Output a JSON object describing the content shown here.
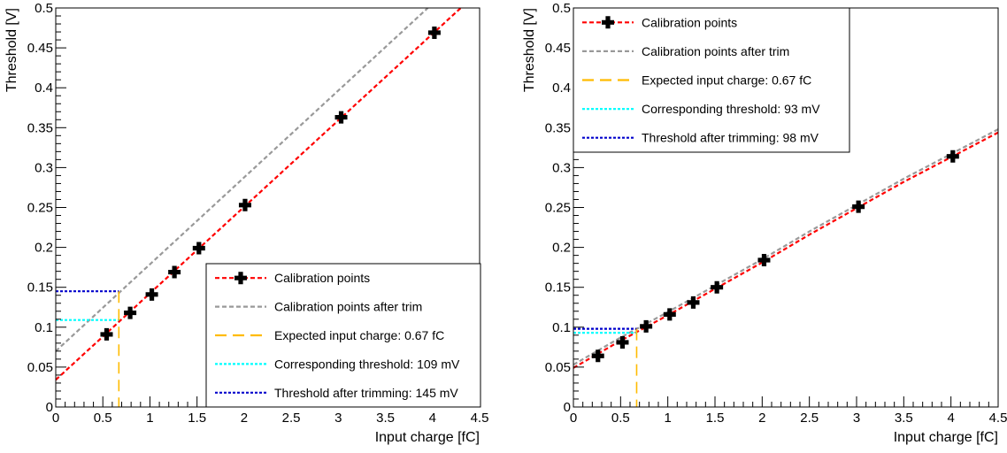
{
  "chart_data": [
    {
      "type": "line",
      "xlabel": "Input charge [fC]",
      "ylabel": "Threshold [V]",
      "xlim": [
        0,
        4.5
      ],
      "ylim": [
        0,
        0.5
      ],
      "x_ticks": [
        "0",
        "0.5",
        "1",
        "1.5",
        "2",
        "2.5",
        "3",
        "3.5",
        "4",
        "4.5"
      ],
      "y_ticks": [
        "0",
        "0.05",
        "0.1",
        "0.15",
        "0.2",
        "0.25",
        "0.3",
        "0.35",
        "0.4",
        "0.45",
        "0.5"
      ],
      "grid": false,
      "legend_position": "bottom-right",
      "series": [
        {
          "name": "Calibration points",
          "color": "#ff0000",
          "marker": "cross",
          "points": [
            [
              0.54,
              0.091
            ],
            [
              0.79,
              0.118
            ],
            [
              1.02,
              0.141
            ],
            [
              1.26,
              0.169
            ],
            [
              1.52,
              0.199
            ],
            [
              2.01,
              0.253
            ],
            [
              3.03,
              0.363
            ],
            [
              4.02,
              0.469
            ]
          ],
          "fit": [
            [
              0,
              0.034
            ],
            [
              4.3,
              0.5
            ]
          ]
        },
        {
          "name": "Calibration points after trim",
          "color": "#999999",
          "fit": [
            [
              0,
              0.07
            ],
            [
              3.95,
              0.5
            ]
          ]
        },
        {
          "name": "Expected input charge: 0.67 fC",
          "color": "#ffbb00",
          "value": 0.67
        },
        {
          "name": "Corresponding threshold: 109 mV",
          "color": "#00ffff",
          "value": 0.109
        },
        {
          "name": "Threshold after trimming: 145 mV",
          "color": "#0000cc",
          "value": 0.145
        }
      ]
    },
    {
      "type": "line",
      "xlabel": "Input charge [fC]",
      "ylabel": "Threshold [V]",
      "xlim": [
        0,
        4.5
      ],
      "ylim": [
        0,
        0.5
      ],
      "x_ticks": [
        "0",
        "0.5",
        "1",
        "1.5",
        "2",
        "2.5",
        "3",
        "3.5",
        "4",
        "4.5"
      ],
      "y_ticks": [
        "0",
        "0.05",
        "0.1",
        "0.15",
        "0.2",
        "0.25",
        "0.3",
        "0.35",
        "0.4",
        "0.45",
        "0.5"
      ],
      "grid": false,
      "legend_position": "top-left",
      "series": [
        {
          "name": "Calibration points",
          "color": "#ff0000",
          "marker": "cross",
          "points": [
            [
              0.26,
              0.064
            ],
            [
              0.52,
              0.081
            ],
            [
              0.77,
              0.101
            ],
            [
              1.02,
              0.116
            ],
            [
              1.27,
              0.131
            ],
            [
              1.52,
              0.15
            ],
            [
              2.02,
              0.184
            ],
            [
              3.02,
              0.251
            ],
            [
              4.02,
              0.314
            ]
          ],
          "fit": [
            [
              0,
              0.049
            ],
            [
              0.5,
              0.083
            ],
            [
              1,
              0.115
            ],
            [
              1.5,
              0.148
            ],
            [
              2,
              0.181
            ],
            [
              2.5,
              0.216
            ],
            [
              3,
              0.249
            ],
            [
              3.5,
              0.282
            ],
            [
              4,
              0.313
            ],
            [
              4.5,
              0.344
            ]
          ]
        },
        {
          "name": "Calibration points after trim",
          "color": "#999999",
          "fit": [
            [
              0,
              0.053
            ],
            [
              0.5,
              0.087
            ],
            [
              1,
              0.119
            ],
            [
              1.5,
              0.152
            ],
            [
              2,
              0.185
            ],
            [
              2.5,
              0.22
            ],
            [
              3,
              0.253
            ],
            [
              3.5,
              0.286
            ],
            [
              4,
              0.317
            ],
            [
              4.5,
              0.348
            ]
          ]
        },
        {
          "name": "Expected input charge: 0.67 fC",
          "color": "#ffbb00",
          "value": 0.67
        },
        {
          "name": "Corresponding threshold: 93 mV",
          "color": "#00ffff",
          "value": 0.093
        },
        {
          "name": "Threshold after trimming: 98 mV",
          "color": "#0000cc",
          "value": 0.098
        }
      ]
    }
  ]
}
